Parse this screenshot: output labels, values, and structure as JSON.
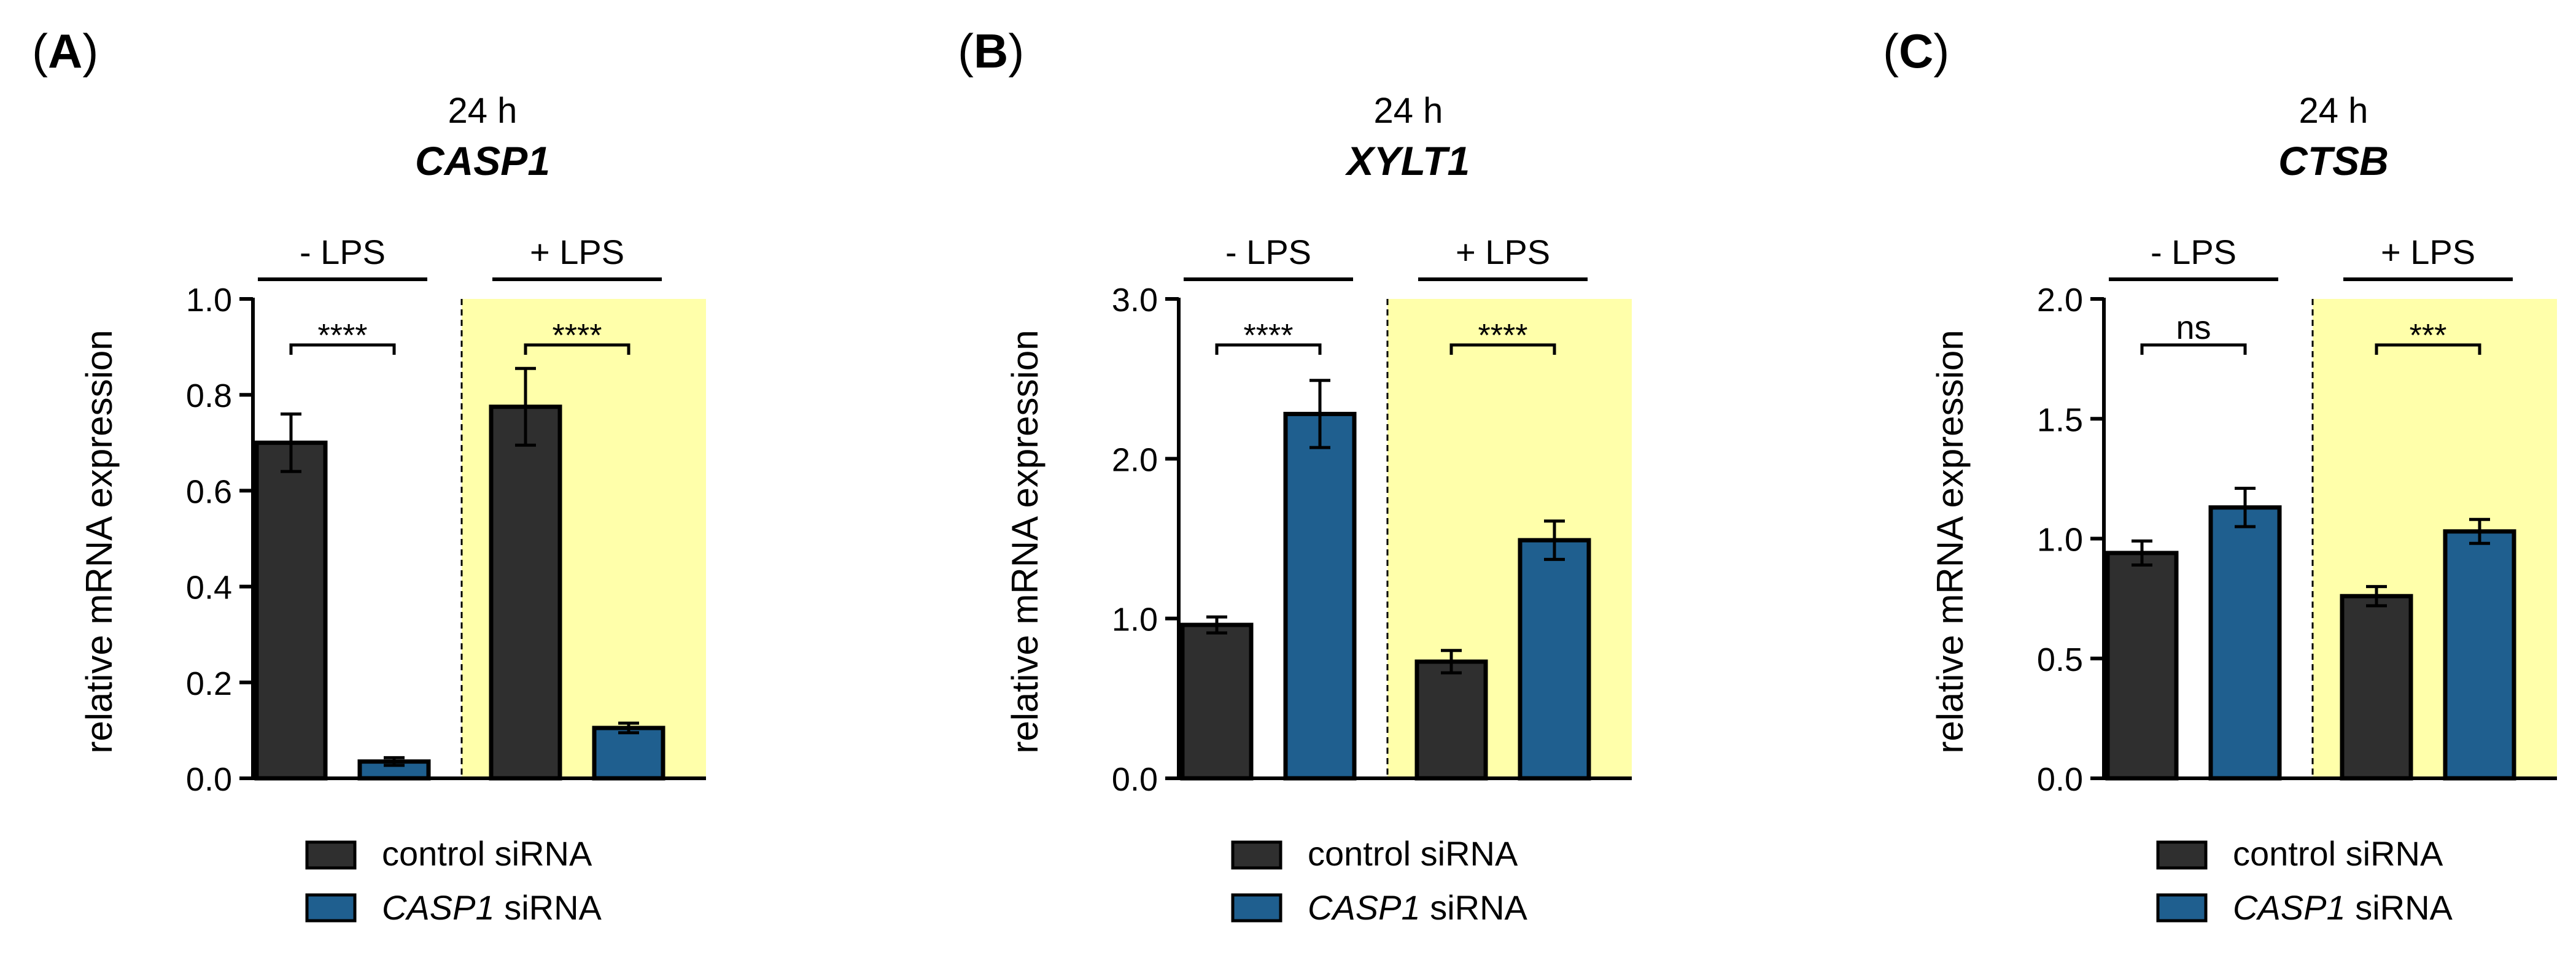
{
  "figure": {
    "legend": {
      "control_label": "control siRNA",
      "casp1_gene": "CASP1",
      "casp1_suffix": " siRNA"
    }
  },
  "colors": {
    "control": "#2f2f2f",
    "casp1": "#1f5f8f",
    "lps_highlight": "#ffffaa",
    "axis": "#000000"
  },
  "chart_data": [
    {
      "type": "bar",
      "panel_label": "(A)",
      "panel_letter": "A",
      "timepoint": "24 h",
      "title": "CASP1",
      "ylabel": "relative mRNA expression",
      "ylim": [
        0,
        1.0
      ],
      "ytick_values": [
        0,
        0.2,
        0.4,
        0.6,
        0.8,
        1.0
      ],
      "yticks": [
        "0.0",
        "0.2",
        "0.4",
        "0.6",
        "0.8",
        "1.0"
      ],
      "groups": [
        "- LPS",
        "+ LPS"
      ],
      "highlight_group": "+ LPS",
      "series": [
        {
          "name": "control siRNA",
          "values": [
            0.7,
            0.775
          ],
          "errors": [
            0.06,
            0.08
          ]
        },
        {
          "name": "CASP1 siRNA",
          "values": [
            0.035,
            0.105
          ],
          "errors": [
            0.008,
            0.01
          ]
        }
      ],
      "significance": [
        "****",
        "****"
      ]
    },
    {
      "type": "bar",
      "panel_label": "(B)",
      "panel_letter": "B",
      "timepoint": "24 h",
      "title": "XYLT1",
      "ylabel": "relative mRNA expression",
      "ylim": [
        0,
        3.0
      ],
      "ytick_values": [
        0,
        1,
        2,
        3
      ],
      "yticks": [
        "0.0",
        "1.0",
        "2.0",
        "3.0"
      ],
      "groups": [
        "- LPS",
        "+ LPS"
      ],
      "highlight_group": "+ LPS",
      "series": [
        {
          "name": "control siRNA",
          "values": [
            0.96,
            0.73
          ],
          "errors": [
            0.05,
            0.07
          ]
        },
        {
          "name": "CASP1 siRNA",
          "values": [
            2.28,
            1.49
          ],
          "errors": [
            0.21,
            0.12
          ]
        }
      ],
      "significance": [
        "****",
        "****"
      ]
    },
    {
      "type": "bar",
      "panel_label": "(C)",
      "panel_letter": "C",
      "timepoint": "24 h",
      "title": "CTSB",
      "ylabel": "relative mRNA expression",
      "ylim": [
        0,
        2.0
      ],
      "ytick_values": [
        0,
        0.5,
        1.0,
        1.5,
        2.0
      ],
      "yticks": [
        "0.0",
        "0.5",
        "1.0",
        "1.5",
        "2.0"
      ],
      "groups": [
        "- LPS",
        "+ LPS"
      ],
      "highlight_group": "+ LPS",
      "series": [
        {
          "name": "control siRNA",
          "values": [
            0.94,
            0.76
          ],
          "errors": [
            0.05,
            0.04
          ]
        },
        {
          "name": "CASP1 siRNA",
          "values": [
            1.13,
            1.03
          ],
          "errors": [
            0.08,
            0.05
          ]
        }
      ],
      "significance": [
        "ns",
        "***"
      ]
    }
  ]
}
